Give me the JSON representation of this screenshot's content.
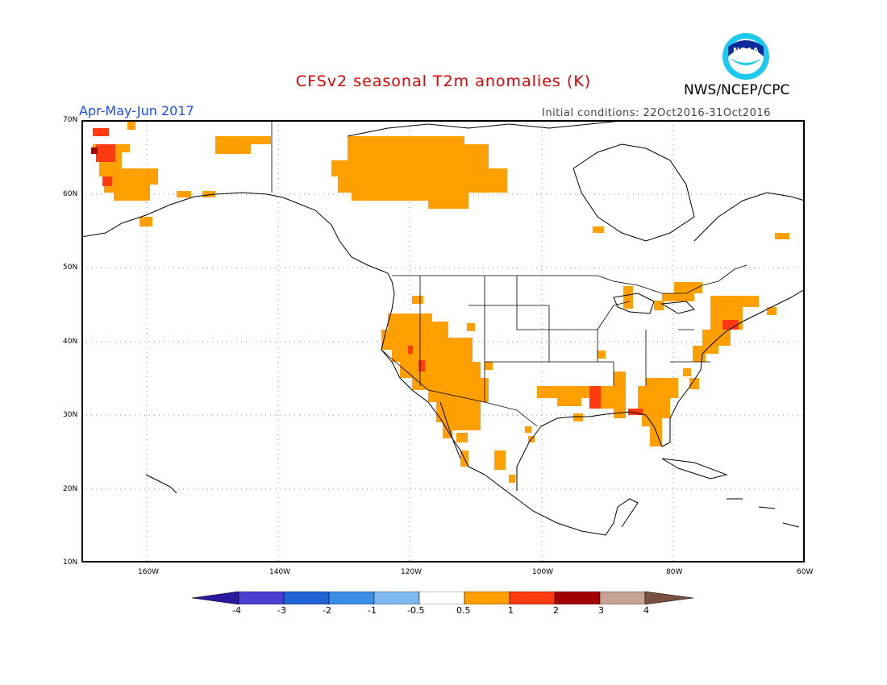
{
  "header": {
    "title": "CFSv2 seasonal T2m anomalies (K)",
    "season": "Apr-May-Jun 2017",
    "initial_conditions": "Initial conditions: 22Oct2016-31Oct2016",
    "agency": "NWS/NCEP/CPC",
    "logo_text": "NOAA"
  },
  "map": {
    "lat_range": [
      10,
      70
    ],
    "lon_range": [
      -170,
      -60
    ],
    "lat_labels": [
      "70N",
      "60N",
      "50N",
      "40N",
      "30N",
      "20N",
      "10N"
    ],
    "lon_labels": [
      "160W",
      "140W",
      "120W",
      "100W",
      "80W",
      "60W"
    ]
  },
  "legend": {
    "labels": [
      "-4",
      "-3",
      "-2",
      "-1",
      "-0.5",
      "0.5",
      "1",
      "2",
      "3",
      "4"
    ],
    "colors": [
      "#2a1a9e",
      "#4b3fd1",
      "#1f63d2",
      "#3c8de8",
      "#7fb8f0",
      "#ffffff",
      "#ff9f00",
      "#ff3a10",
      "#a30000",
      "#c8a294",
      "#7a5040"
    ]
  },
  "anomaly_colors": {
    "warm1": "#ff9f00",
    "warm2": "#ff3a10"
  }
}
